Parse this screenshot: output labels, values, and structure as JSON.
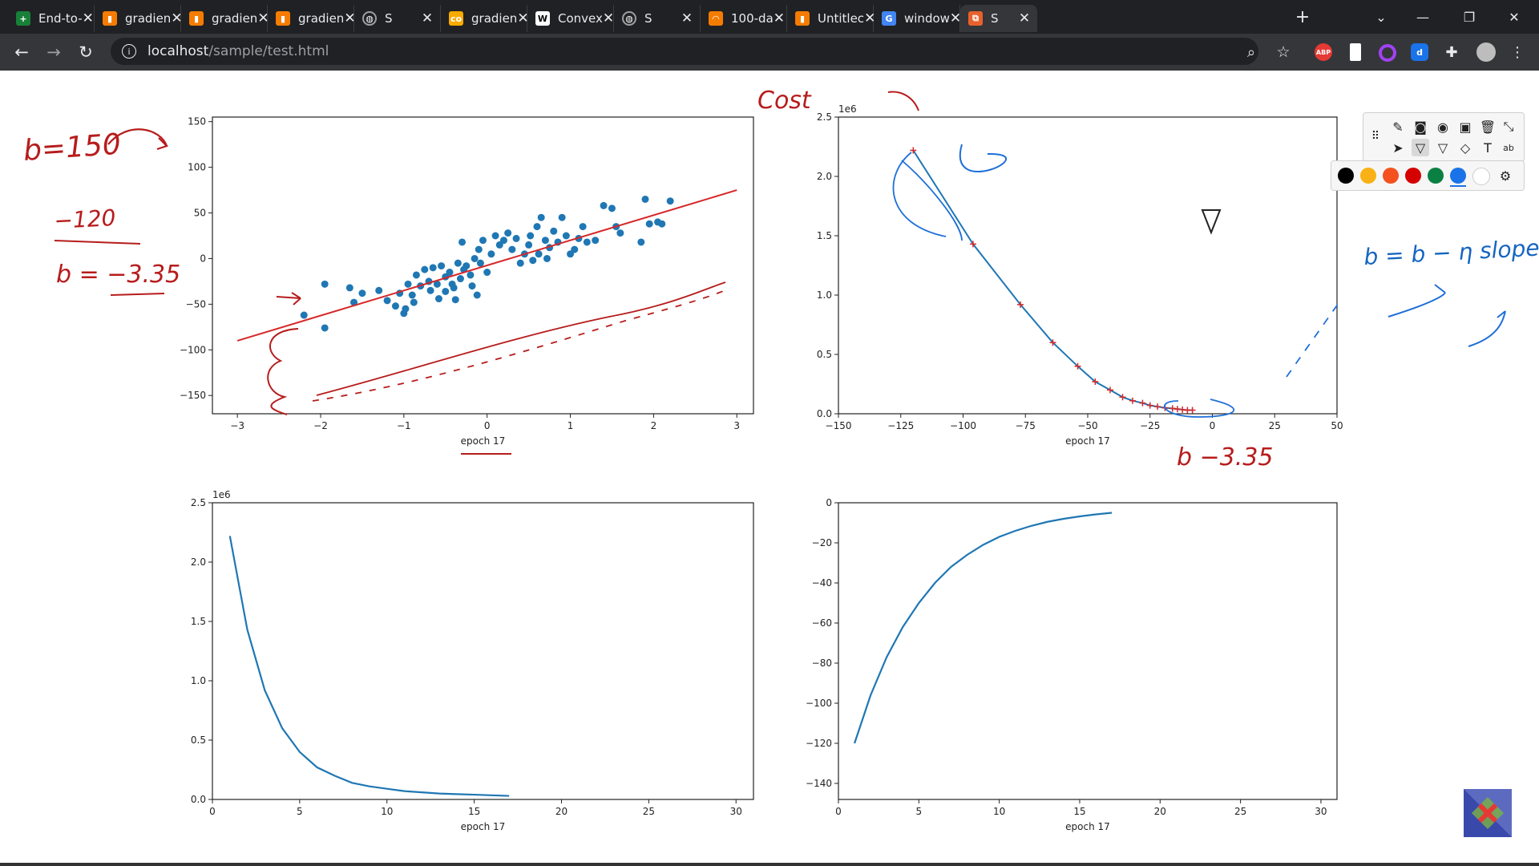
{
  "browser": {
    "tabs": [
      {
        "title": "End-to-",
        "icon": "sheets-icon",
        "color": "#188038"
      },
      {
        "title": "gradien",
        "icon": "book-icon",
        "color": "#f57c00"
      },
      {
        "title": "gradien",
        "icon": "book-icon",
        "color": "#f57c00"
      },
      {
        "title": "gradien",
        "icon": "book-icon",
        "color": "#f57c00"
      },
      {
        "title": "S",
        "icon": "globe-icon",
        "color": "#5f6368"
      },
      {
        "title": "gradien",
        "icon": "colab-icon",
        "color": "#f9ab00"
      },
      {
        "title": "Convex",
        "icon": "wikipedia-icon",
        "color": "#ffffff"
      },
      {
        "title": "S",
        "icon": "globe-icon",
        "color": "#5f6368"
      },
      {
        "title": "100-da",
        "icon": "loading-icon",
        "color": "#f57c00"
      },
      {
        "title": "Untitlec",
        "icon": "book-icon",
        "color": "#f57c00"
      },
      {
        "title": "window",
        "icon": "google-icon",
        "color": "#4285f4"
      },
      {
        "title": "S",
        "icon": "html-icon",
        "color": "#e8612c"
      }
    ],
    "url_host": "localhost",
    "url_path": "/sample/test.html",
    "extensions": [
      {
        "name": "adblock-icon",
        "label": "ABP",
        "color": "#e53935"
      },
      {
        "name": "bookmark-ext-icon",
        "label": "",
        "color": "#ffffff"
      },
      {
        "name": "ring-ext-icon",
        "label": "",
        "color": "#a142f4"
      },
      {
        "name": "d-ext-icon",
        "label": "d",
        "color": "#1a73e8"
      },
      {
        "name": "puzzle-icon",
        "label": "",
        "color": "#e8eaed"
      }
    ]
  },
  "plots": {
    "top_left": {
      "xlabel": "epoch 17",
      "xlim": [
        -3.3,
        3.2
      ],
      "ylim": [
        -170,
        155
      ],
      "xticks": [
        "−3",
        "−2",
        "−1",
        "0",
        "1",
        "2",
        "3"
      ],
      "yticks": [
        "150",
        "100",
        "50",
        "0",
        "−50",
        "−100",
        "−150"
      ]
    },
    "top_right": {
      "xlabel": "epoch 17",
      "offset_label": "1e6",
      "xticks": [
        "−150",
        "−125",
        "−100",
        "−75",
        "−50",
        "−25",
        "0",
        "25",
        "50"
      ],
      "yticks": [
        "2.5",
        "2.0",
        "1.5",
        "1.0",
        "0.5",
        "0.0"
      ]
    },
    "bottom_left": {
      "xlabel": "epoch 17",
      "offset_label": "1e6",
      "xticks": [
        "0",
        "5",
        "10",
        "15",
        "20",
        "25",
        "30"
      ],
      "yticks": [
        "2.5",
        "2.0",
        "1.5",
        "1.0",
        "0.5",
        "0.0"
      ]
    },
    "bottom_right": {
      "xlabel": "epoch 17",
      "xticks": [
        "0",
        "5",
        "10",
        "15",
        "20",
        "25",
        "30"
      ],
      "yticks": [
        "0",
        "−20",
        "−40",
        "−60",
        "−80",
        "−100",
        "−120",
        "−140"
      ]
    }
  },
  "chart_data": [
    {
      "type": "scatter",
      "name": "data-points-with-regression-line",
      "xlim": [
        -3.3,
        3.2
      ],
      "ylim": [
        -170,
        155
      ],
      "points": [
        [
          -2.2,
          -62
        ],
        [
          -1.95,
          -28
        ],
        [
          -1.95,
          -76
        ],
        [
          -1.65,
          -32
        ],
        [
          -1.6,
          -48
        ],
        [
          -1.5,
          -38
        ],
        [
          -1.3,
          -35
        ],
        [
          -1.2,
          -46
        ],
        [
          -1.1,
          -52
        ],
        [
          -1.05,
          -38
        ],
        [
          -1.0,
          -60
        ],
        [
          -0.98,
          -55
        ],
        [
          -0.95,
          -28
        ],
        [
          -0.9,
          -40
        ],
        [
          -0.88,
          -48
        ],
        [
          -0.85,
          -18
        ],
        [
          -0.8,
          -30
        ],
        [
          -0.75,
          -12
        ],
        [
          -0.7,
          -25
        ],
        [
          -0.68,
          -35
        ],
        [
          -0.65,
          -10
        ],
        [
          -0.6,
          -28
        ],
        [
          -0.58,
          -44
        ],
        [
          -0.55,
          -8
        ],
        [
          -0.5,
          -20
        ],
        [
          -0.5,
          -36
        ],
        [
          -0.45,
          -15
        ],
        [
          -0.42,
          -28
        ],
        [
          -0.4,
          -32
        ],
        [
          -0.38,
          -45
        ],
        [
          -0.35,
          -5
        ],
        [
          -0.32,
          -22
        ],
        [
          -0.3,
          18
        ],
        [
          -0.28,
          -12
        ],
        [
          -0.25,
          -8
        ],
        [
          -0.2,
          -18
        ],
        [
          -0.18,
          -30
        ],
        [
          -0.15,
          0
        ],
        [
          -0.12,
          -40
        ],
        [
          -0.1,
          10
        ],
        [
          -0.08,
          -5
        ],
        [
          -0.05,
          20
        ],
        [
          0.0,
          -15
        ],
        [
          0.05,
          5
        ],
        [
          0.1,
          25
        ],
        [
          0.15,
          15
        ],
        [
          0.2,
          20
        ],
        [
          0.25,
          28
        ],
        [
          0.3,
          10
        ],
        [
          0.35,
          22
        ],
        [
          0.4,
          -5
        ],
        [
          0.45,
          5
        ],
        [
          0.5,
          15
        ],
        [
          0.52,
          25
        ],
        [
          0.55,
          -2
        ],
        [
          0.6,
          35
        ],
        [
          0.62,
          5
        ],
        [
          0.65,
          45
        ],
        [
          0.7,
          20
        ],
        [
          0.72,
          0
        ],
        [
          0.75,
          12
        ],
        [
          0.8,
          30
        ],
        [
          0.85,
          18
        ],
        [
          0.9,
          45
        ],
        [
          0.95,
          25
        ],
        [
          1.0,
          5
        ],
        [
          1.05,
          10
        ],
        [
          1.1,
          22
        ],
        [
          1.15,
          35
        ],
        [
          1.2,
          18
        ],
        [
          1.3,
          20
        ],
        [
          1.4,
          58
        ],
        [
          1.5,
          55
        ],
        [
          1.55,
          35
        ],
        [
          1.6,
          28
        ],
        [
          1.85,
          18
        ],
        [
          1.9,
          65
        ],
        [
          1.95,
          38
        ],
        [
          2.05,
          40
        ],
        [
          2.1,
          38
        ],
        [
          2.2,
          63
        ]
      ],
      "line": {
        "x": [
          -3.0,
          3.0
        ],
        "y": [
          -90,
          75
        ],
        "color": "#d62728"
      },
      "point_color": "#1f77b4"
    },
    {
      "type": "line",
      "name": "cost-vs-b",
      "xlim": [
        -150,
        50
      ],
      "ylim": [
        0,
        2.5
      ],
      "x": [
        -120,
        -96,
        -77,
        -64,
        -54,
        -47,
        -41,
        -36,
        -32,
        -28,
        -25,
        -22,
        -19,
        -16,
        -14,
        -12,
        -10,
        -8
      ],
      "y": [
        2.22,
        1.43,
        0.92,
        0.6,
        0.4,
        0.27,
        0.2,
        0.14,
        0.11,
        0.09,
        0.07,
        0.06,
        0.05,
        0.045,
        0.04,
        0.035,
        0.03,
        0.03
      ],
      "line_color": "#1f77b4",
      "marker_color": "#d62728"
    },
    {
      "type": "line",
      "name": "cost-vs-epoch",
      "xlim": [
        0,
        31
      ],
      "ylim": [
        0,
        2.5
      ],
      "x": [
        1,
        2,
        3,
        4,
        5,
        6,
        7,
        8,
        9,
        10,
        11,
        12,
        13,
        14,
        15,
        16,
        17
      ],
      "y": [
        2.22,
        1.43,
        0.92,
        0.6,
        0.4,
        0.27,
        0.2,
        0.14,
        0.11,
        0.09,
        0.07,
        0.06,
        0.05,
        0.045,
        0.04,
        0.035,
        0.03
      ],
      "line_color": "#1f77b4"
    },
    {
      "type": "line",
      "name": "b-vs-epoch",
      "xlim": [
        0,
        31
      ],
      "ylim": [
        -148,
        0
      ],
      "x": [
        1,
        2,
        3,
        4,
        5,
        6,
        7,
        8,
        9,
        10,
        11,
        12,
        13,
        14,
        15,
        16,
        17
      ],
      "y": [
        -120,
        -96,
        -77,
        -62,
        -50,
        -40,
        -32,
        -26,
        -21,
        -17,
        -14,
        -11.5,
        -9.5,
        -8,
        -6.8,
        -5.8,
        -5
      ],
      "line_color": "#1f77b4"
    }
  ],
  "annotations": {
    "handwriting": [
      {
        "text": "b=150",
        "color": "#b71c1c"
      },
      {
        "text": "−120",
        "color": "#b71c1c"
      },
      {
        "text": "b = −3.35",
        "color": "#b71c1c"
      },
      {
        "text": "Cost",
        "color": "#b71c1c"
      },
      {
        "text": "b −3.35",
        "color": "#b71c1c"
      },
      {
        "text": "b = b − η slope",
        "color": "#1565c0"
      }
    ],
    "palette": [
      "#000000",
      "#f9b115",
      "#f4511e",
      "#d50000",
      "#0b8043",
      "#1a73e8",
      "#ffffff"
    ]
  }
}
